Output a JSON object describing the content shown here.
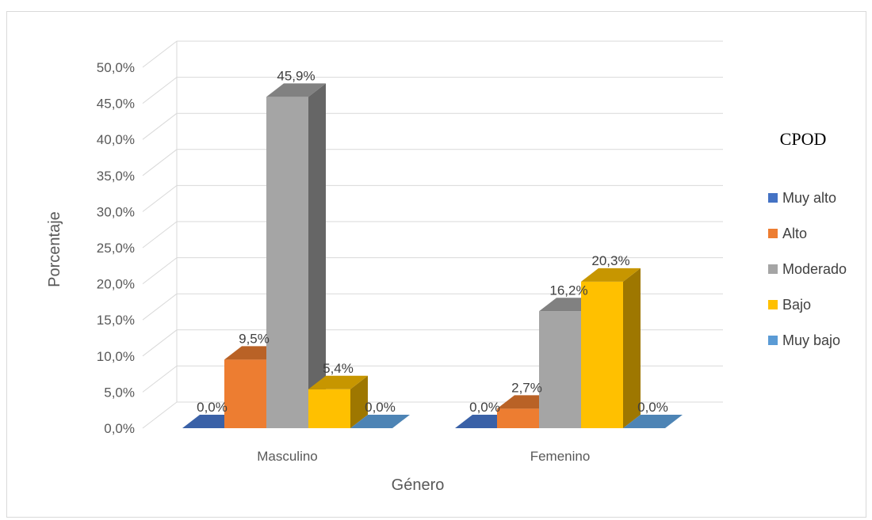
{
  "chart_data": {
    "type": "bar",
    "categories": [
      "Masculino",
      "Femenino"
    ],
    "series": [
      {
        "name": "Muy alto",
        "values": [
          0.0,
          0.0
        ],
        "labels": [
          "0,0%",
          "0,0%"
        ],
        "color": "#4472C4"
      },
      {
        "name": "Alto",
        "values": [
          9.5,
          2.7
        ],
        "labels": [
          "9,5%",
          "2,7%"
        ],
        "color": "#ED7D31"
      },
      {
        "name": "Moderado",
        "values": [
          45.9,
          16.2
        ],
        "labels": [
          "45,9%",
          "16,2%"
        ],
        "color": "#A5A5A5"
      },
      {
        "name": "Bajo",
        "values": [
          5.4,
          20.3
        ],
        "labels": [
          "5,4%",
          "20,3%"
        ],
        "color": "#FFC000"
      },
      {
        "name": "Muy bajo",
        "values": [
          0.0,
          0.0
        ],
        "labels": [
          "0,0%",
          "0,0%"
        ],
        "color": "#5B9BD5"
      }
    ],
    "xlabel": "Género",
    "ylabel": "Porcentaje",
    "ylim": [
      0,
      50
    ],
    "yticks": [
      0,
      5,
      10,
      15,
      20,
      25,
      30,
      35,
      40,
      45,
      50
    ],
    "ytick_labels": [
      "0,0%",
      "5,0%",
      "10,0%",
      "15,0%",
      "20,0%",
      "25,0%",
      "30,0%",
      "35,0%",
      "40,0%",
      "45,0%",
      "50,0%"
    ],
    "legend_title": "CPOD",
    "legend_position": "right",
    "grid": true,
    "style": "3d-column"
  }
}
